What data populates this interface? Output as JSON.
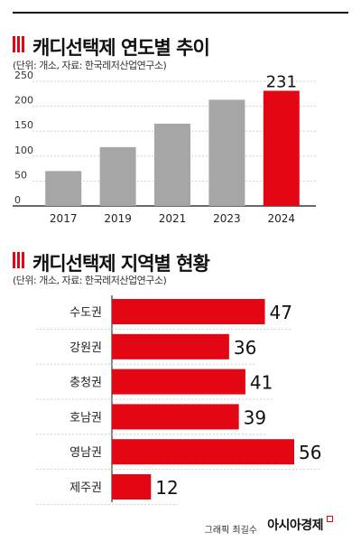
{
  "chart_data": [
    {
      "type": "bar",
      "title": "캐디선택제 연도별 추이",
      "subtitle": "(단위: 개소, 자료: 한국레저산업연구소)",
      "categories": [
        "2017",
        "2019",
        "2021",
        "2023",
        "2024"
      ],
      "values": [
        70,
        118,
        165,
        213,
        231
      ],
      "data_labels": [
        "",
        "",
        "",
        "",
        "231"
      ],
      "yticks": [
        "0",
        "50",
        "100",
        "150",
        "200",
        "250"
      ],
      "ylim": [
        0,
        250
      ],
      "grid": true,
      "colors": [
        "#a6a6a6",
        "#a6a6a6",
        "#a6a6a6",
        "#a6a6a6",
        "#e30613"
      ]
    },
    {
      "type": "bar",
      "orientation": "horizontal",
      "title": "캐디선택제 지역별 현황",
      "subtitle": "(단위: 개소, 자료: 한국레저산업연구소)",
      "categories": [
        "수도권",
        "강원권",
        "충청권",
        "호남권",
        "영남권",
        "제주권"
      ],
      "values": [
        47,
        36,
        41,
        39,
        56,
        12
      ],
      "data_labels": [
        "47",
        "36",
        "41",
        "39",
        "56",
        "12"
      ],
      "xlim": [
        0,
        56
      ],
      "color": "#e30613"
    }
  ],
  "footer": {
    "credit": "그래픽 최길수",
    "logo": "아시아경제"
  },
  "colors": {
    "accent": "#e30613",
    "bar_gray": "#a6a6a6"
  }
}
